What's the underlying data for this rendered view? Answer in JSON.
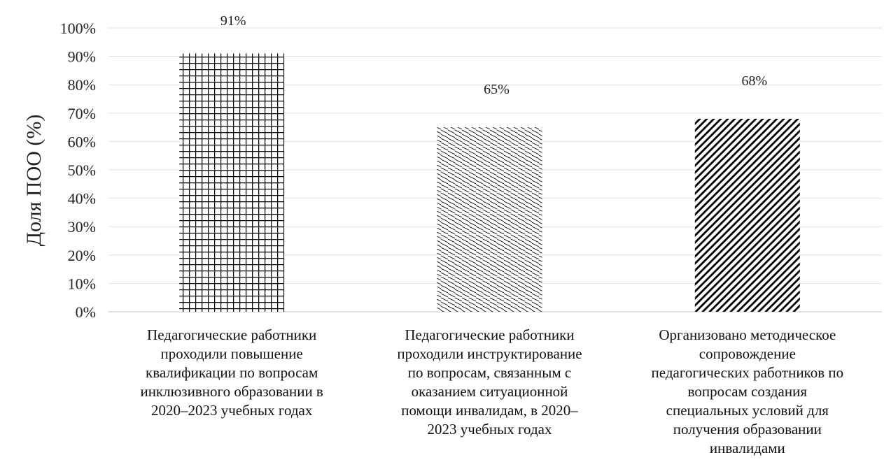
{
  "chart_data": {
    "type": "bar",
    "title": "",
    "xlabel": "",
    "ylabel": "Доля ПОО (%)",
    "ylim": [
      0,
      100
    ],
    "yticks": [
      "0%",
      "10%",
      "20%",
      "30%",
      "40%",
      "50%",
      "60%",
      "70%",
      "80%",
      "90%",
      "100%"
    ],
    "grid": true,
    "legend": "none",
    "bar_color": "#000000",
    "categories": [
      {
        "lines": [
          "Педагогические работники",
          "проходили повышение",
          "квалификации по вопросам",
          "инклюзивного образовании в",
          "2020–2023 учебных годах"
        ],
        "pattern": "grid"
      },
      {
        "lines": [
          "Педагогические работники",
          "проходили инструктирование",
          "по вопросам, связанным с",
          "оказанием ситуационной",
          "помощи инвалидам, в 2020–",
          "2023 учебных годах"
        ],
        "pattern": "fine-hatch"
      },
      {
        "lines": [
          "Организовано методическое",
          "сопровождение",
          "педагогических работников по",
          "вопросам создания",
          "специальных условий для",
          "получения образовании",
          "инвалидами"
        ],
        "pattern": "diagonal-hatch"
      }
    ],
    "values": [
      91,
      65,
      68
    ],
    "data_labels": [
      "91%",
      "65%",
      "68%"
    ]
  }
}
